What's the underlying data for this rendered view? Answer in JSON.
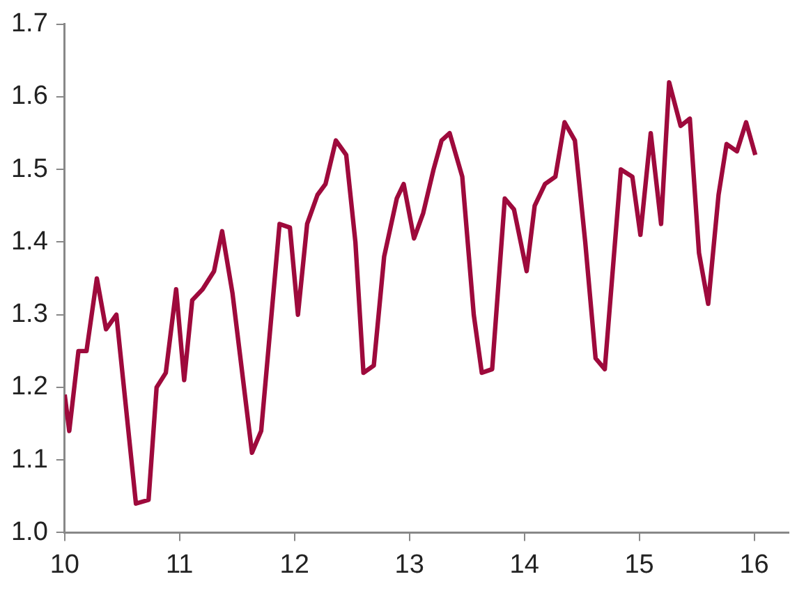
{
  "chart_data": {
    "type": "line",
    "x": [
      10.0,
      10.04,
      10.12,
      10.19,
      10.28,
      10.36,
      10.45,
      10.62,
      10.73,
      10.8,
      10.88,
      10.97,
      11.04,
      11.11,
      11.2,
      11.3,
      11.37,
      11.46,
      11.63,
      11.71,
      11.87,
      11.96,
      12.03,
      12.11,
      12.2,
      12.27,
      12.36,
      12.45,
      12.53,
      12.6,
      12.69,
      12.78,
      12.89,
      12.95,
      13.04,
      13.12,
      13.21,
      13.28,
      13.35,
      13.46,
      13.56,
      13.63,
      13.72,
      13.83,
      13.91,
      14.02,
      14.09,
      14.18,
      14.27,
      14.35,
      14.44,
      14.53,
      14.62,
      14.7,
      14.84,
      14.94,
      15.01,
      15.1,
      15.19,
      15.26,
      15.36,
      15.44,
      15.52,
      15.6,
      15.69,
      15.76,
      15.85,
      15.93,
      16.01
    ],
    "series": [
      {
        "color": "#9e0a3c",
        "values": [
          1.19,
          1.14,
          1.25,
          1.25,
          1.35,
          1.28,
          1.3,
          1.04,
          1.045,
          1.2,
          1.22,
          1.335,
          1.21,
          1.32,
          1.335,
          1.36,
          1.415,
          1.33,
          1.11,
          1.14,
          1.425,
          1.42,
          1.3,
          1.425,
          1.465,
          1.48,
          1.54,
          1.52,
          1.4,
          1.22,
          1.23,
          1.38,
          1.46,
          1.48,
          1.405,
          1.44,
          1.5,
          1.54,
          1.55,
          1.49,
          1.3,
          1.22,
          1.225,
          1.46,
          1.445,
          1.36,
          1.45,
          1.48,
          1.49,
          1.565,
          1.54,
          1.4,
          1.24,
          1.225,
          1.5,
          1.49,
          1.41,
          1.55,
          1.425,
          1.62,
          1.56,
          1.57,
          1.385,
          1.315,
          1.465,
          1.535,
          1.525,
          1.565,
          1.52
        ]
      }
    ],
    "xlim": [
      10,
      16.3
    ],
    "xticks": [
      10,
      11,
      12,
      13,
      14,
      15,
      16
    ],
    "ylim": [
      1.0,
      1.7
    ],
    "yticks": [
      {
        "value": 1.0,
        "label": "1.0"
      },
      1.1,
      1.2,
      1.3,
      1.4,
      1.5,
      1.6,
      1.7
    ],
    "grid": false,
    "legend": false,
    "marker": "none",
    "line_style": "solid"
  }
}
